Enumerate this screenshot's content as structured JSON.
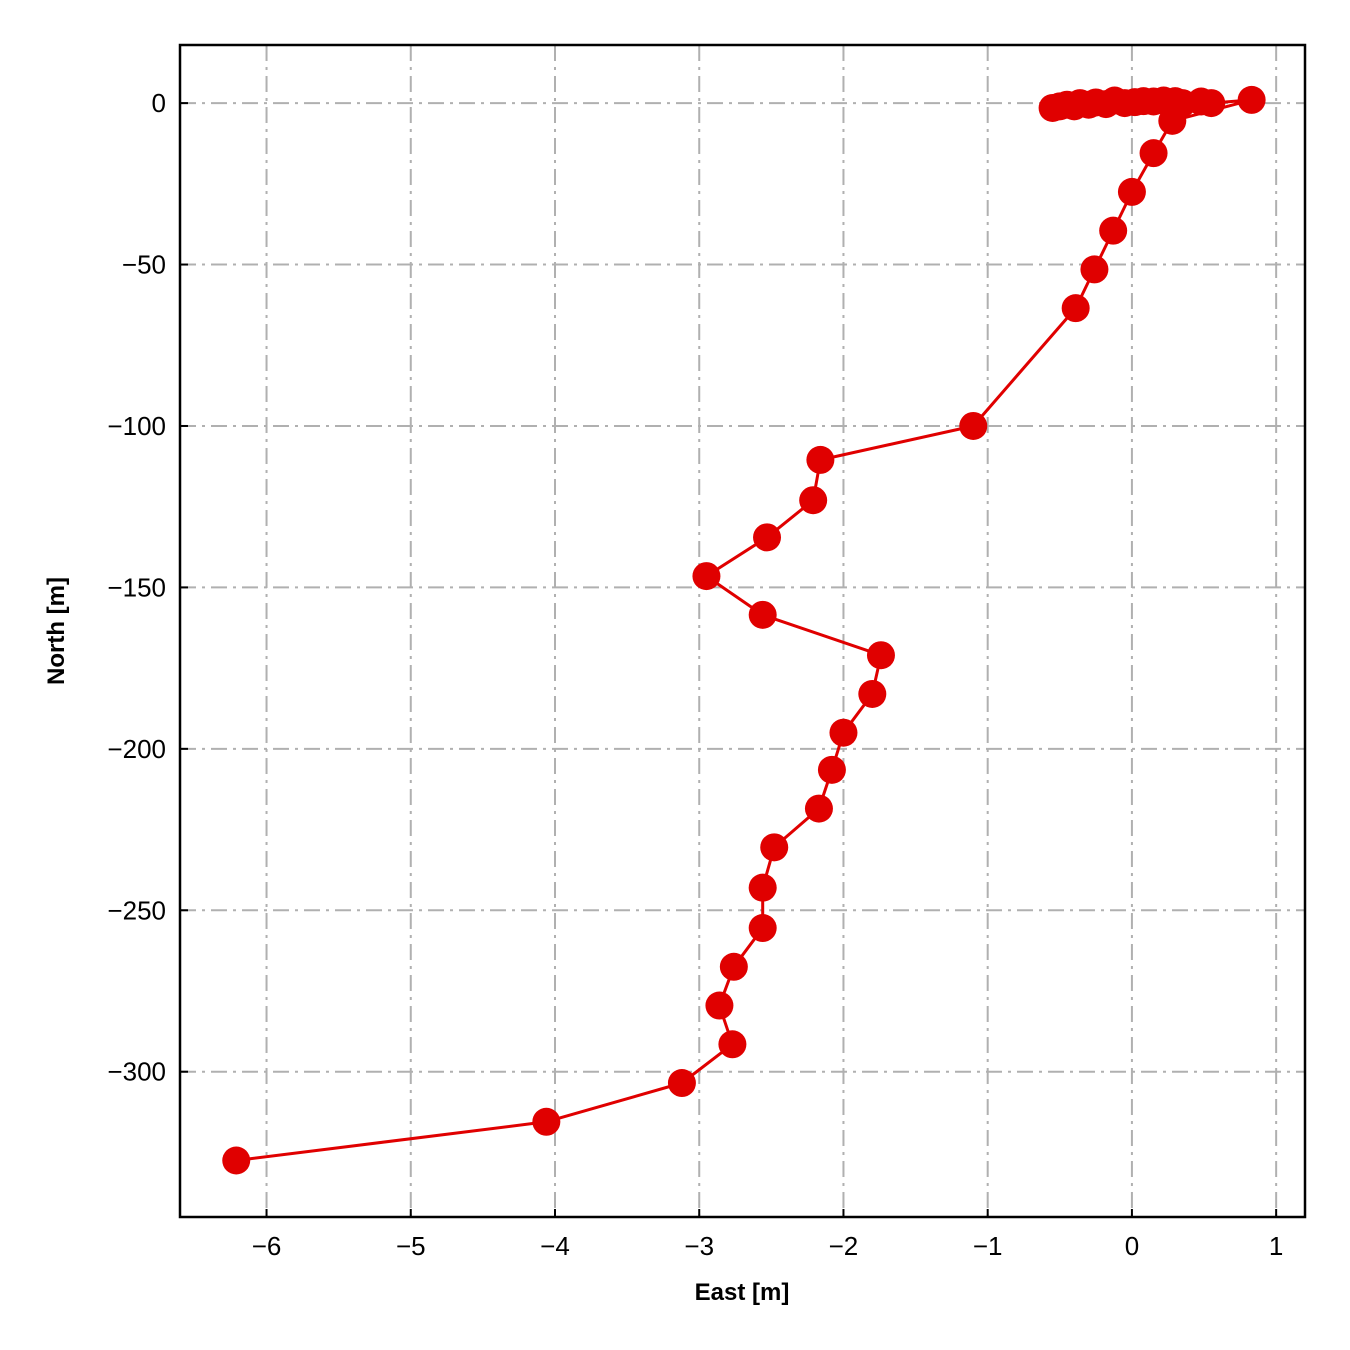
{
  "chart_data": {
    "type": "line",
    "title": "",
    "xlabel": "East [m]",
    "ylabel": "North [m]",
    "xlim": [
      -6.6,
      1.2
    ],
    "ylim": [
      -345,
      18
    ],
    "xticks": [
      -6,
      -5,
      -4,
      -3,
      -2,
      -1,
      0,
      1
    ],
    "xtick_labels": [
      "−6",
      "−5",
      "−4",
      "−3",
      "−2",
      "−1",
      "0",
      "1"
    ],
    "yticks": [
      0,
      -50,
      -100,
      -150,
      -200,
      -250,
      -300
    ],
    "ytick_labels": [
      "0",
      "−50",
      "−100",
      "−150",
      "−200",
      "−250",
      "−300"
    ],
    "grid": true,
    "line_color": "#e00000",
    "marker_color": "#e00000",
    "series": [
      {
        "x": [
          -0.55,
          -0.5,
          -0.45,
          -0.4,
          -0.36,
          -0.3,
          -0.25,
          -0.18,
          -0.12,
          -0.05,
          0.02,
          0.08,
          0.15,
          0.22,
          0.3,
          0.35,
          0.48,
          0.55,
          0.83,
          0.28,
          0.15,
          0.0,
          -0.13,
          -0.26,
          -0.39,
          -1.1,
          -2.16,
          -2.21,
          -2.53,
          -2.95,
          -2.56,
          -1.74,
          -1.8,
          -2.0,
          -2.08,
          -2.17,
          -2.48,
          -2.56,
          -2.56,
          -2.76,
          -2.86,
          -2.77,
          -3.12,
          -4.06,
          -6.21
        ],
        "y": [
          -1.5,
          -1.0,
          -0.5,
          -1.0,
          0.0,
          -0.5,
          0.2,
          -0.3,
          0.8,
          0.0,
          0.3,
          0.6,
          0.5,
          0.8,
          0.6,
          0.0,
          0.5,
          0.0,
          1.0,
          -5.5,
          -15.5,
          -27.5,
          -39.5,
          -51.5,
          -63.5,
          -100,
          -110.5,
          -123,
          -134.5,
          -146.5,
          -158.5,
          -171,
          -183,
          -195,
          -206.5,
          -218.5,
          -230.5,
          -243,
          -255.5,
          -267.5,
          -279.5,
          -291.5,
          -303.5,
          -315.5,
          -327.5
        ]
      }
    ]
  }
}
